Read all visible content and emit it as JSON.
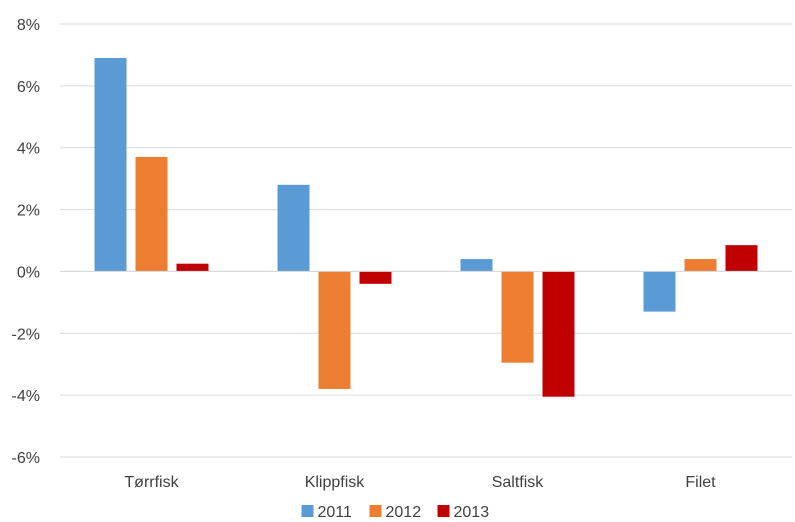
{
  "chart_data": {
    "type": "bar",
    "categories": [
      "Tørrfisk",
      "Klippfisk",
      "Saltfisk",
      "Filet"
    ],
    "series": [
      {
        "name": "2011",
        "color": "#5b9bd5",
        "values": [
          6.9,
          2.8,
          0.4,
          -1.3
        ]
      },
      {
        "name": "2012",
        "color": "#ed7d31",
        "values": [
          3.7,
          -3.8,
          -2.95,
          0.4
        ]
      },
      {
        "name": "2013",
        "color": "#c00000",
        "values": [
          0.25,
          -0.4,
          -4.05,
          0.85
        ]
      }
    ],
    "y_ticks": [
      "8%",
      "6%",
      "4%",
      "2%",
      "0%",
      "-2%",
      "-4%",
      "-6%"
    ],
    "ylim": [
      -6,
      8
    ],
    "grid": true,
    "legend_position": "bottom"
  }
}
